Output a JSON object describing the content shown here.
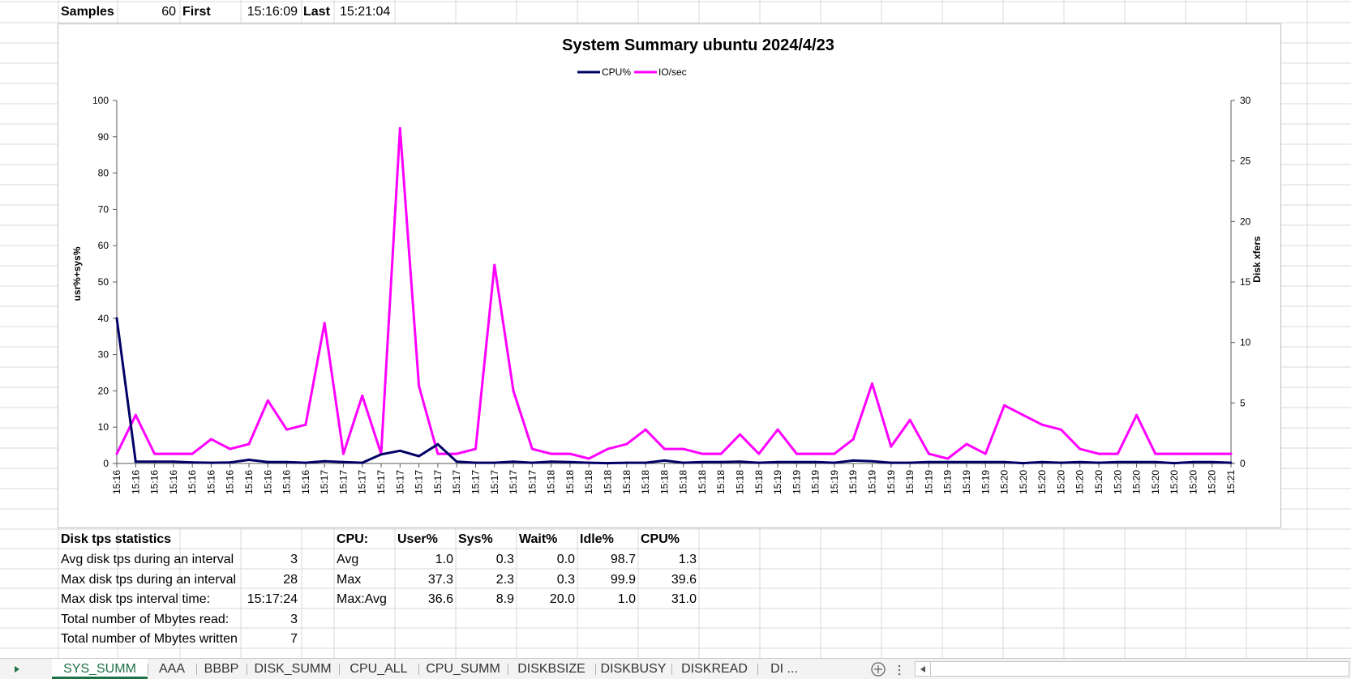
{
  "header_row": {
    "samples_label": "Samples",
    "samples_value": "60",
    "first_label": "First",
    "first_value": "15:16:09",
    "last_label": "Last",
    "last_value": "15:21:04"
  },
  "chart_data": {
    "type": "line",
    "title": "System Summary ubuntu  2024/4/23",
    "legend_position": "top",
    "ylabel": "usr%+sys%",
    "y2label": "Disk xfers",
    "ylim": [
      0,
      100
    ],
    "y2lim": [
      0,
      30
    ],
    "yticks": [
      "0",
      "10",
      "20",
      "30",
      "40",
      "50",
      "60",
      "70",
      "80",
      "90",
      "100"
    ],
    "y2ticks": [
      "0",
      "5",
      "10",
      "15",
      "20",
      "25",
      "30"
    ],
    "x": [
      "15:16",
      "15:16",
      "15:16",
      "15:16",
      "15:16",
      "15:16",
      "15:16",
      "15:16",
      "15:16",
      "15:16",
      "15:16",
      "15:17",
      "15:17",
      "15:17",
      "15:17",
      "15:17",
      "15:17",
      "15:17",
      "15:17",
      "15:17",
      "15:17",
      "15:17",
      "15:17",
      "15:18",
      "15:18",
      "15:18",
      "15:18",
      "15:18",
      "15:18",
      "15:18",
      "15:18",
      "15:18",
      "15:18",
      "15:18",
      "15:18",
      "15:19",
      "15:19",
      "15:19",
      "15:19",
      "15:19",
      "15:19",
      "15:19",
      "15:19",
      "15:19",
      "15:19",
      "15:19",
      "15:19",
      "15:20",
      "15:20",
      "15:20",
      "15:20",
      "15:20",
      "15:20",
      "15:20",
      "15:20",
      "15:20",
      "15:20",
      "15:20",
      "15:20",
      "15:21"
    ],
    "series": [
      {
        "name": "CPU%",
        "axis": "left",
        "color": "#000066",
        "values": [
          40,
          0.5,
          0.5,
          0.5,
          0.3,
          0.2,
          0.3,
          1.0,
          0.4,
          0.4,
          0.2,
          0.6,
          0.4,
          0.2,
          2.5,
          3.5,
          2.0,
          5.3,
          0.5,
          0.2,
          0.2,
          0.5,
          0.2,
          0.5,
          0.4,
          0.2,
          0.1,
          0.2,
          0.2,
          0.8,
          0.2,
          0.4,
          0.4,
          0.5,
          0.2,
          0.4,
          0.4,
          0.4,
          0.2,
          0.8,
          0.6,
          0.2,
          0.2,
          0.4,
          0.4,
          0.4,
          0.4,
          0.4,
          0.1,
          0.4,
          0.2,
          0.4,
          0.2,
          0.4,
          0.4,
          0.4,
          0.1,
          0.4,
          0.4,
          0.2
        ]
      },
      {
        "name": "IO/sec",
        "axis": "right",
        "color": "#ff00ff",
        "values": [
          0.8,
          4.0,
          0.8,
          0.8,
          0.8,
          2.0,
          1.2,
          1.6,
          5.2,
          2.8,
          3.2,
          11.6,
          0.8,
          5.6,
          0.8,
          27.7,
          6.4,
          0.8,
          0.8,
          1.2,
          16.4,
          6.0,
          1.2,
          0.8,
          0.8,
          0.4,
          1.2,
          1.6,
          2.8,
          1.2,
          1.2,
          0.8,
          0.8,
          2.4,
          0.8,
          2.8,
          0.8,
          0.8,
          0.8,
          2.0,
          6.6,
          1.4,
          3.6,
          0.8,
          0.4,
          1.6,
          0.8,
          4.8,
          4.0,
          3.2,
          2.8,
          1.2,
          0.8,
          0.8,
          4.0,
          0.8,
          0.8,
          0.8,
          0.8,
          0.8
        ]
      }
    ]
  },
  "disk_stats": {
    "title": "Disk tps statistics",
    "rows": [
      {
        "label": "Avg disk tps during an interval",
        "value": "3"
      },
      {
        "label": "Max disk tps during an interval",
        "value": "28"
      },
      {
        "label": "Max disk tps interval time:",
        "value": "15:17:24"
      },
      {
        "label": "Total number of Mbytes read:",
        "value": "3"
      },
      {
        "label": "Total number of Mbytes written",
        "value": "7"
      }
    ]
  },
  "cpu_stats": {
    "headers": [
      "CPU:",
      "User%",
      "Sys%",
      "Wait%",
      "Idle%",
      "CPU%"
    ],
    "rows": [
      [
        "Avg",
        "1.0",
        "0.3",
        "0.0",
        "98.7",
        "1.3"
      ],
      [
        "Max",
        "37.3",
        "2.3",
        "0.3",
        "99.9",
        "39.6"
      ],
      [
        "Max:Avg",
        "36.6",
        "8.9",
        "20.0",
        "1.0",
        "31.0"
      ]
    ]
  },
  "tabs": [
    {
      "label": "SYS_SUMM",
      "active": true
    },
    {
      "label": "AAA"
    },
    {
      "label": "BBBP"
    },
    {
      "label": "DISK_SUMM"
    },
    {
      "label": "CPU_ALL"
    },
    {
      "label": "CPU_SUMM"
    },
    {
      "label": "DISKBSIZE"
    },
    {
      "label": "DISKBUSY"
    },
    {
      "label": "DISKREAD"
    },
    {
      "label": "DI ..."
    }
  ],
  "tabbar_icons": {
    "scroll_left": "triangle-right-icon",
    "add_sheet": "plus-circle-icon",
    "more": "vertical-dots-icon",
    "hscroll_left": "scroll-left-icon"
  }
}
